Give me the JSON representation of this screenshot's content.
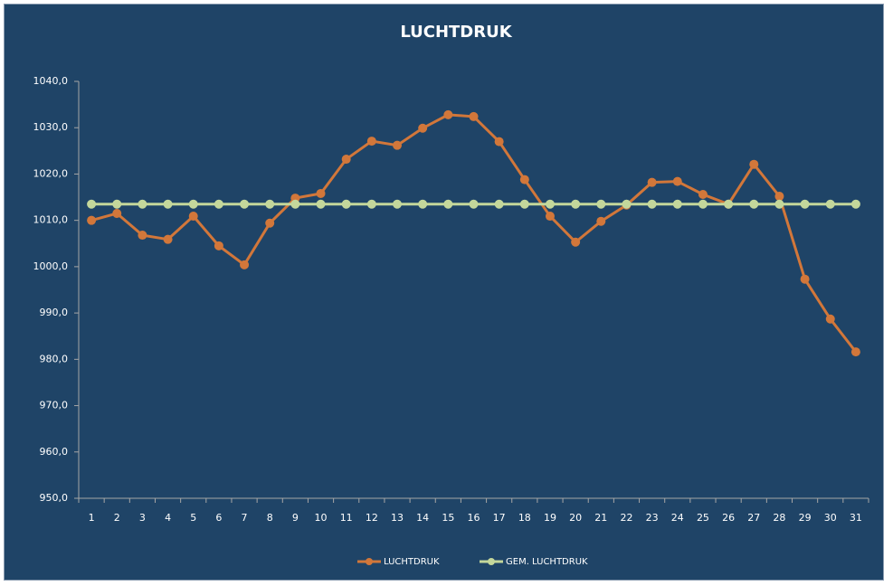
{
  "chart_data": {
    "type": "line",
    "title": "LUCHTDRUK",
    "categories": [
      "1",
      "2",
      "3",
      "4",
      "5",
      "6",
      "7",
      "8",
      "9",
      "10",
      "11",
      "12",
      "13",
      "14",
      "15",
      "16",
      "17",
      "18",
      "19",
      "20",
      "21",
      "22",
      "23",
      "24",
      "25",
      "26",
      "27",
      "28",
      "29",
      "30",
      "31"
    ],
    "series": [
      {
        "name": "LUCHTDRUK",
        "color": "#d2773a",
        "values": [
          1010.0,
          1011.5,
          1006.8,
          1005.9,
          1010.9,
          1004.5,
          1000.4,
          1009.4,
          1014.8,
          1015.8,
          1023.2,
          1027.1,
          1026.2,
          1029.9,
          1032.8,
          1032.4,
          1027.0,
          1018.8,
          1010.9,
          1005.3,
          1009.8,
          1013.3,
          1018.2,
          1018.4,
          1015.6,
          1013.5,
          1022.1,
          1015.2,
          997.3,
          988.7,
          981.6
        ]
      },
      {
        "name": "GEM. LUCHTDRUK",
        "color": "#c4d79b",
        "values": [
          1013.5,
          1013.5,
          1013.5,
          1013.5,
          1013.5,
          1013.5,
          1013.5,
          1013.5,
          1013.5,
          1013.5,
          1013.5,
          1013.5,
          1013.5,
          1013.5,
          1013.5,
          1013.5,
          1013.5,
          1013.5,
          1013.5,
          1013.5,
          1013.5,
          1013.5,
          1013.5,
          1013.5,
          1013.5,
          1013.5,
          1013.5,
          1013.5,
          1013.5,
          1013.5,
          1013.5
        ]
      }
    ],
    "ylim": [
      950,
      1040
    ],
    "yticks": [
      {
        "value": 950,
        "label": "950,0"
      },
      {
        "value": 960,
        "label": "960,0"
      },
      {
        "value": 970,
        "label": "970,0"
      },
      {
        "value": 980,
        "label": "980,0"
      },
      {
        "value": 990,
        "label": "990,0"
      },
      {
        "value": 1000,
        "label": "1000,0"
      },
      {
        "value": 1010,
        "label": "1010,0"
      },
      {
        "value": 1020,
        "label": "1020,0"
      },
      {
        "value": 1030,
        "label": "1030,0"
      },
      {
        "value": 1040,
        "label": "1040,0"
      }
    ],
    "grid": false,
    "legend": "bottom"
  }
}
